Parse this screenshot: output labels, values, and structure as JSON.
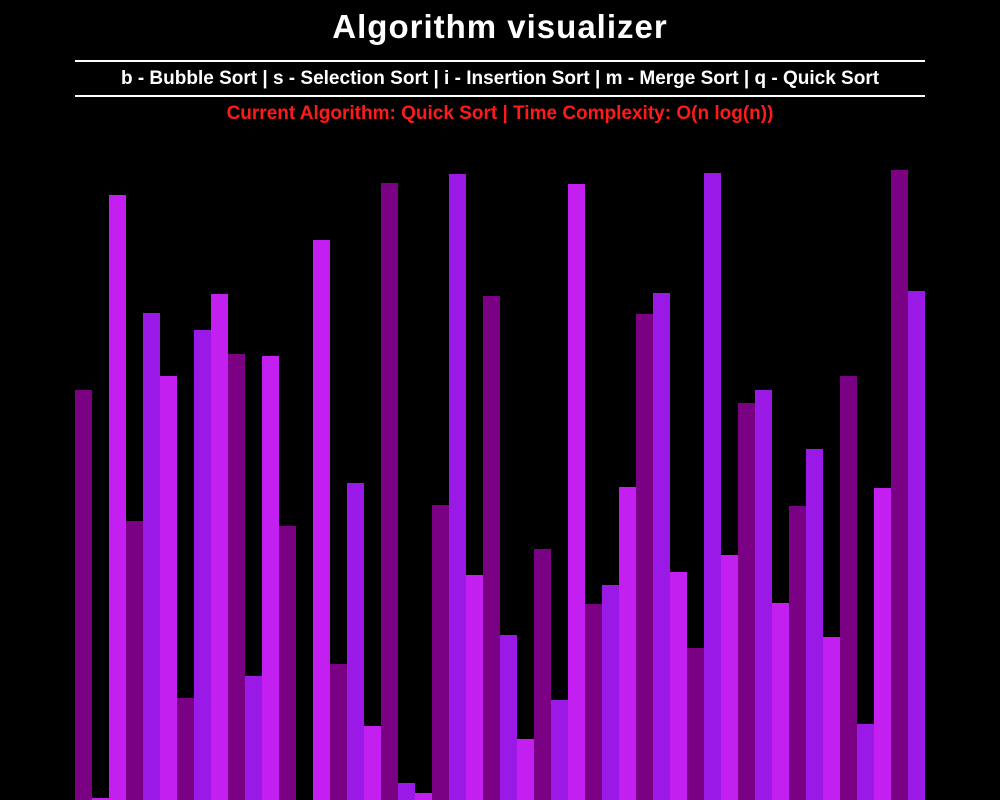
{
  "header": {
    "title": "Algorithm visualizer",
    "keys": "b - Bubble Sort | s - Selection Sort | i - Insertion Sort | m - Merge Sort | q - Quick Sort",
    "status": "Current Algorithm: Quick Sort | Time Complexity: O(n log(n))"
  },
  "colors": {
    "background": "#000000",
    "text": "#ffffff",
    "status": "#ff1a1a",
    "bar_shades": [
      "#7a0084",
      "#9a19e6",
      "#c21ff0"
    ]
  },
  "chart_data": {
    "type": "bar",
    "values": [
      410,
      2,
      605,
      279,
      487,
      424,
      102,
      470,
      506,
      446,
      124,
      444,
      274,
      0,
      560,
      136,
      317,
      74,
      617,
      17,
      7,
      295,
      626,
      225,
      504,
      165,
      61,
      251,
      100,
      616,
      196,
      215,
      313,
      486,
      507,
      228,
      152,
      627,
      245,
      397,
      410,
      197,
      294,
      351,
      163,
      424,
      76,
      312,
      630,
      509
    ],
    "shade_index": [
      0,
      2,
      2,
      0,
      1,
      2,
      0,
      1,
      2,
      0,
      1,
      2,
      0,
      0,
      2,
      0,
      1,
      2,
      0,
      1,
      2,
      0,
      1,
      2,
      0,
      1,
      2,
      0,
      1,
      2,
      0,
      1,
      2,
      0,
      1,
      2,
      0,
      1,
      2,
      0,
      1,
      2,
      0,
      1,
      2,
      0,
      1,
      2,
      0,
      1
    ],
    "ylim": [
      0,
      800
    ]
  }
}
